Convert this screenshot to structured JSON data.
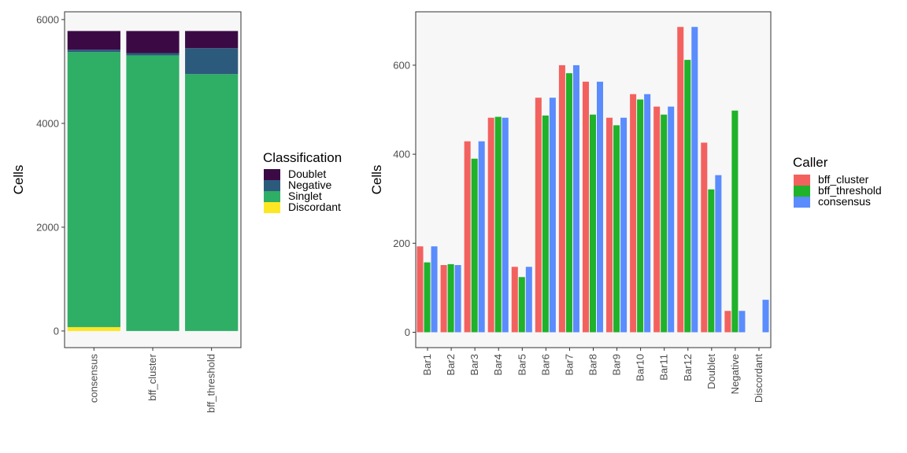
{
  "chart_data": [
    {
      "type": "bar",
      "stacked": true,
      "categories": [
        "consensus",
        "bff_cluster",
        "bff_threshold"
      ],
      "ylabel": "Cells",
      "xlabel": "",
      "ylim": [
        0,
        6000
      ],
      "yticks": [
        0,
        2000,
        4000,
        6000
      ],
      "grid": false,
      "legend": {
        "title": "Classification",
        "position": "right"
      },
      "series": [
        {
          "name": "Discordant",
          "color": "#fde725",
          "values": [
            75,
            0,
            0
          ]
        },
        {
          "name": "Singlet",
          "color": "#2fae66",
          "values": [
            5300,
            5310,
            4950
          ]
        },
        {
          "name": "Negative",
          "color": "#2c5a7c",
          "values": [
            45,
            45,
            500
          ]
        },
        {
          "name": "Doublet",
          "color": "#3b0a45",
          "values": [
            360,
            425,
            330
          ]
        }
      ],
      "legend_order": [
        "Doublet",
        "Negative",
        "Singlet",
        "Discordant"
      ]
    },
    {
      "type": "bar",
      "stacked": false,
      "categories": [
        "Bar1",
        "Bar2",
        "Bar3",
        "Bar4",
        "Bar5",
        "Bar6",
        "Bar7",
        "Bar8",
        "Bar9",
        "Bar10",
        "Bar11",
        "Bar12",
        "Doublet",
        "Negative",
        "Discordant"
      ],
      "ylabel": "Cells",
      "xlabel": "",
      "ylim": [
        0,
        700
      ],
      "yticks": [
        0,
        200,
        400,
        600
      ],
      "grid": false,
      "legend": {
        "title": "Caller",
        "position": "right"
      },
      "series": [
        {
          "name": "bff_cluster",
          "color": "#f3615f",
          "values": [
            193,
            151,
            429,
            482,
            147,
            527,
            600,
            563,
            482,
            535,
            507,
            686,
            426,
            48,
            0
          ]
        },
        {
          "name": "bff_threshold",
          "color": "#1fb22a",
          "values": [
            157,
            153,
            390,
            484,
            124,
            487,
            582,
            489,
            465,
            523,
            489,
            612,
            321,
            498,
            0
          ]
        },
        {
          "name": "consensus",
          "color": "#5a8cfd",
          "values": [
            193,
            151,
            429,
            482,
            147,
            527,
            600,
            563,
            482,
            535,
            507,
            686,
            353,
            48,
            73
          ]
        }
      ]
    }
  ]
}
